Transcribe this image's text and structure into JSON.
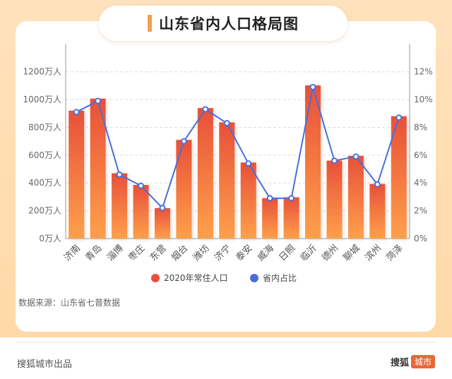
{
  "title": "山东省内人口格局图",
  "source": "数据来源：山东省七普数据",
  "footer": {
    "left": "搜狐城市出品",
    "brand": "搜狐",
    "badge": "城市"
  },
  "colors": {
    "bar_top": "#e8503a",
    "bar_bottom": "#ffa04a",
    "line": "#4a6fd9",
    "background": "#ffdcae"
  },
  "chart_data": {
    "type": "bar",
    "categories": [
      "济南",
      "青岛",
      "淄博",
      "枣庄",
      "东营",
      "烟台",
      "潍坊",
      "济宁",
      "泰安",
      "威海",
      "日照",
      "临沂",
      "德州",
      "聊城",
      "滨州",
      "菏泽"
    ],
    "series": [
      {
        "name": "2020年常住人口",
        "type": "bar",
        "axis": "left",
        "values": [
          920,
          1007,
          470,
          386,
          219,
          710,
          939,
          836,
          547,
          291,
          297,
          1102,
          561,
          595,
          393,
          880
        ]
      },
      {
        "name": "省内占比",
        "type": "line",
        "axis": "right",
        "values": [
          9.1,
          9.9,
          4.6,
          3.8,
          2.2,
          7.0,
          9.3,
          8.3,
          5.4,
          2.9,
          2.9,
          10.9,
          5.6,
          5.9,
          3.9,
          8.7
        ]
      }
    ],
    "y_left": {
      "ticks": [
        0,
        200,
        400,
        600,
        800,
        1000,
        1200
      ],
      "unit_suffix": "万人",
      "lim": [
        0,
        1300
      ]
    },
    "y_right": {
      "ticks": [
        0,
        2,
        4,
        6,
        8,
        10,
        12
      ],
      "unit_suffix": "%",
      "lim": [
        0,
        13
      ]
    },
    "grid": true,
    "legend_position": "bottom"
  }
}
